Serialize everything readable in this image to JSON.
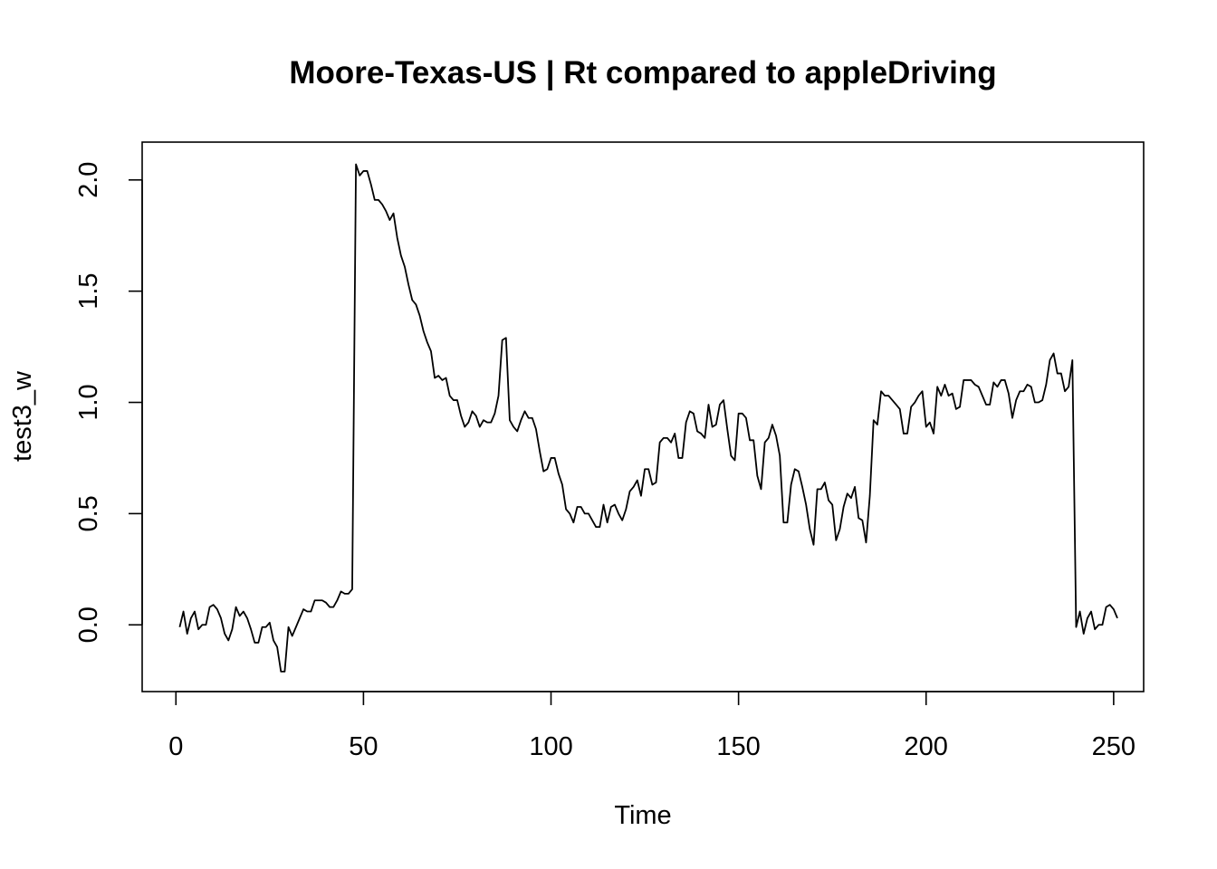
{
  "chart_data": {
    "type": "line",
    "title": "Moore-Texas-US | Rt compared to appleDriving",
    "xlabel": "Time",
    "ylabel": "test3_w",
    "xlim": [
      -9,
      258
    ],
    "ylim": [
      -0.3,
      2.17
    ],
    "x_ticks": [
      0,
      50,
      100,
      150,
      200,
      250
    ],
    "y_ticks": [
      0.0,
      0.5,
      1.0,
      1.5,
      2.0
    ],
    "x_tick_labels": [
      "0",
      "50",
      "100",
      "150",
      "200",
      "250"
    ],
    "y_tick_labels": [
      "0.0",
      "0.5",
      "1.0",
      "1.5",
      "2.0"
    ],
    "grid": false,
    "line_color": "#000000",
    "series": [
      {
        "x_start": 1,
        "values": [
          -0.01,
          0.06,
          -0.04,
          0.03,
          0.06,
          -0.02,
          0.0,
          0.0,
          0.08,
          0.09,
          0.07,
          0.03,
          -0.04,
          -0.07,
          -0.02,
          0.08,
          0.04,
          0.06,
          0.03,
          -0.02,
          -0.08,
          -0.08,
          -0.01,
          -0.01,
          0.01,
          -0.07,
          -0.1,
          -0.21,
          -0.21,
          -0.01,
          -0.05,
          -0.01,
          0.03,
          0.07,
          0.06,
          0.06,
          0.11,
          0.11,
          0.11,
          0.1,
          0.08,
          0.08,
          0.11,
          0.15,
          0.14,
          0.14,
          0.16,
          2.07,
          2.02,
          2.04,
          2.04,
          1.98,
          1.91,
          1.91,
          1.89,
          1.86,
          1.82,
          1.85,
          1.74,
          1.66,
          1.61,
          1.53,
          1.46,
          1.44,
          1.39,
          1.32,
          1.27,
          1.23,
          1.11,
          1.12,
          1.1,
          1.11,
          1.03,
          1.01,
          1.01,
          0.94,
          0.89,
          0.91,
          0.96,
          0.94,
          0.89,
          0.92,
          0.91,
          0.91,
          0.95,
          1.03,
          1.28,
          1.29,
          0.92,
          0.89,
          0.87,
          0.92,
          0.96,
          0.93,
          0.93,
          0.88,
          0.78,
          0.69,
          0.7,
          0.75,
          0.75,
          0.68,
          0.63,
          0.52,
          0.5,
          0.46,
          0.53,
          0.53,
          0.5,
          0.5,
          0.47,
          0.44,
          0.44,
          0.54,
          0.46,
          0.53,
          0.54,
          0.5,
          0.47,
          0.52,
          0.6,
          0.62,
          0.65,
          0.58,
          0.7,
          0.7,
          0.63,
          0.64,
          0.82,
          0.84,
          0.84,
          0.82,
          0.86,
          0.75,
          0.75,
          0.91,
          0.96,
          0.95,
          0.87,
          0.86,
          0.84,
          0.99,
          0.89,
          0.9,
          0.99,
          1.01,
          0.88,
          0.76,
          0.74,
          0.95,
          0.95,
          0.93,
          0.83,
          0.83,
          0.67,
          0.61,
          0.82,
          0.84,
          0.9,
          0.85,
          0.76,
          0.46,
          0.46,
          0.63,
          0.7,
          0.69,
          0.62,
          0.54,
          0.43,
          0.36,
          0.61,
          0.61,
          0.64,
          0.56,
          0.54,
          0.38,
          0.43,
          0.53,
          0.59,
          0.57,
          0.62,
          0.48,
          0.47,
          0.37,
          0.58,
          0.92,
          0.9,
          1.05,
          1.03,
          1.03,
          1.01,
          0.99,
          0.97,
          0.86,
          0.86,
          0.98,
          1.0,
          1.03,
          1.05,
          0.89,
          0.91,
          0.86,
          1.07,
          1.03,
          1.08,
          1.03,
          1.04,
          0.97,
          0.98,
          1.1,
          1.1,
          1.1,
          1.08,
          1.07,
          1.03,
          0.99,
          0.99,
          1.09,
          1.07,
          1.1,
          1.1,
          1.04,
          0.93,
          1.01,
          1.05,
          1.05,
          1.08,
          1.07,
          1.0,
          1.0,
          1.01,
          1.08,
          1.19,
          1.22,
          1.13,
          1.13,
          1.05,
          1.07,
          1.19,
          -0.01,
          0.06,
          -0.04,
          0.03,
          0.06,
          -0.02,
          0.0,
          0.0,
          0.08,
          0.09,
          0.07,
          0.03
        ]
      }
    ]
  }
}
